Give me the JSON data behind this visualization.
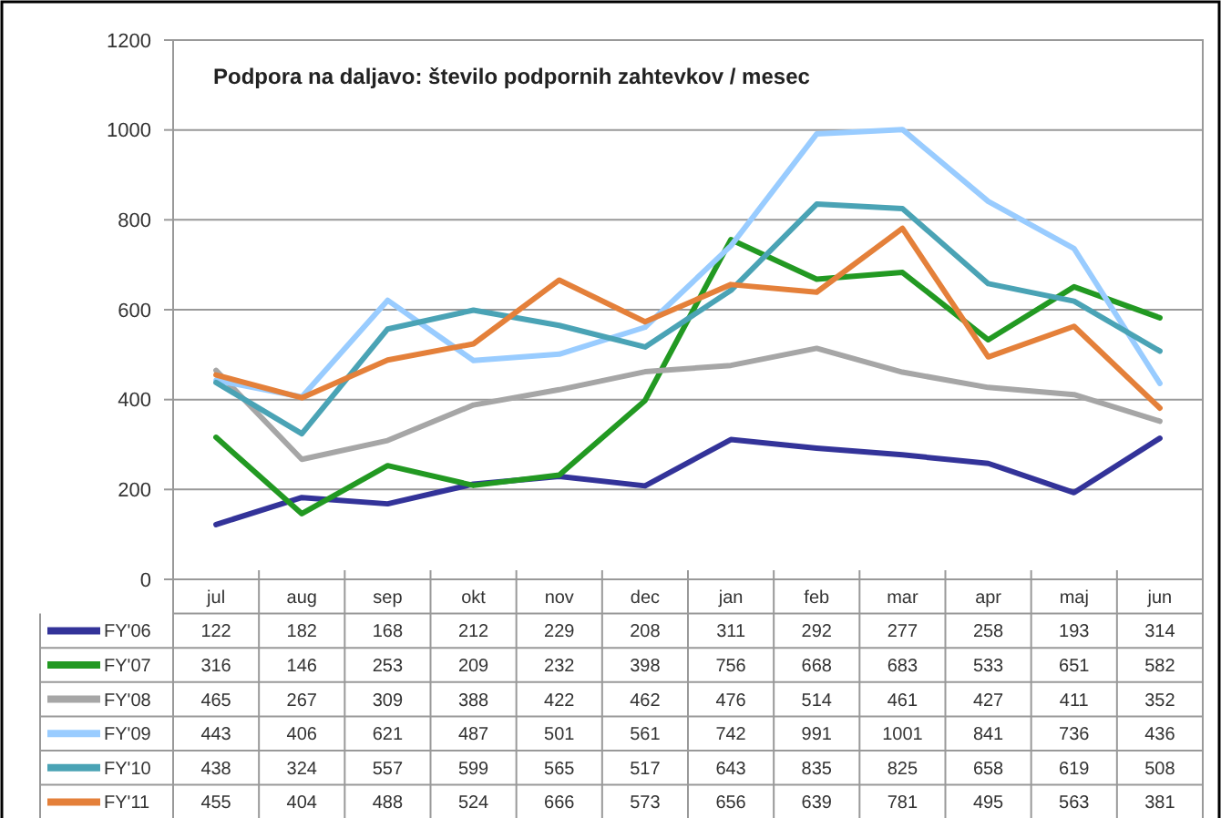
{
  "chart_data": {
    "type": "line",
    "title": "Podpora na daljavo: število podpornih zahtevkov / mesec",
    "categories": [
      "jul",
      "aug",
      "sep",
      "okt",
      "nov",
      "dec",
      "jan",
      "feb",
      "mar",
      "apr",
      "maj",
      "jun"
    ],
    "series": [
      {
        "name": "FY'06",
        "color": "#333399",
        "values": [
          122,
          182,
          168,
          212,
          229,
          208,
          311,
          292,
          277,
          258,
          193,
          314
        ]
      },
      {
        "name": "FY'07",
        "color": "#229922",
        "values": [
          316,
          146,
          253,
          209,
          232,
          398,
          756,
          668,
          683,
          533,
          651,
          582
        ]
      },
      {
        "name": "FY'08",
        "color": "#a6a6a6",
        "values": [
          465,
          267,
          309,
          388,
          422,
          462,
          476,
          514,
          461,
          427,
          411,
          352
        ]
      },
      {
        "name": "FY'09",
        "color": "#99ccff",
        "values": [
          443,
          406,
          621,
          487,
          501,
          561,
          742,
          991,
          1001,
          841,
          736,
          436
        ]
      },
      {
        "name": "FY'10",
        "color": "#4aa3b5",
        "values": [
          438,
          324,
          557,
          599,
          565,
          517,
          643,
          835,
          825,
          658,
          619,
          508
        ]
      },
      {
        "name": "FY'11",
        "color": "#e4803a",
        "values": [
          455,
          404,
          488,
          524,
          666,
          573,
          656,
          639,
          781,
          495,
          563,
          381
        ]
      }
    ],
    "ylim": [
      0,
      1200
    ],
    "yticks": [
      0,
      200,
      400,
      600,
      800,
      1000,
      1200
    ],
    "grid": "y",
    "legend": "bottom",
    "data_labels": true,
    "marker": "none",
    "line_style": "solid"
  }
}
